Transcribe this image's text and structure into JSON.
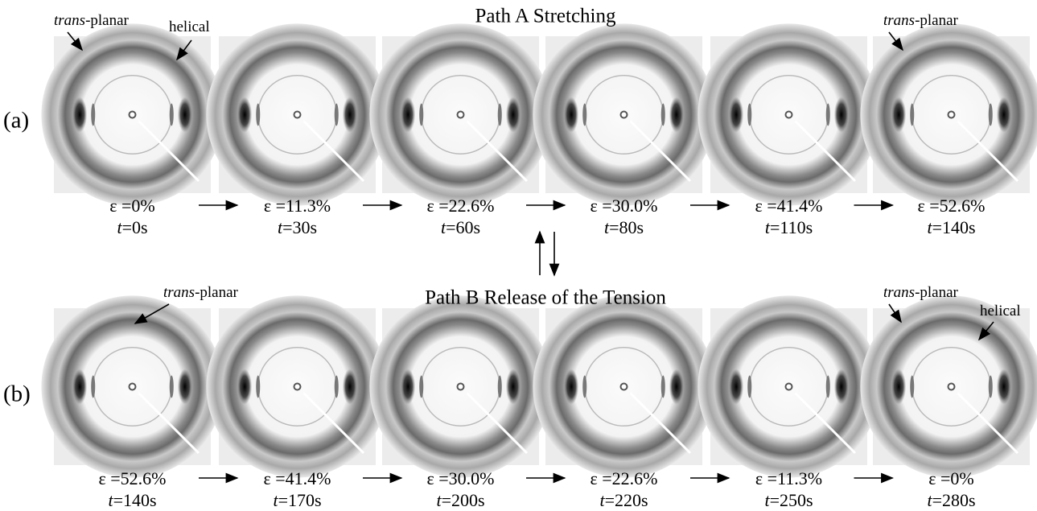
{
  "rows": [
    {
      "title": "Path A Stretching",
      "label": "(a)",
      "panels": [
        {
          "strain": "ε =0%",
          "time_symbol": "t",
          "time": "=0s"
        },
        {
          "strain": "ε =11.3%",
          "time_symbol": "t",
          "time": "=30s"
        },
        {
          "strain": "ε =22.6%",
          "time_symbol": "t",
          "time": "=60s"
        },
        {
          "strain": "ε =30.0%",
          "time_symbol": "t",
          "time": "=80s"
        },
        {
          "strain": "ε =41.4%",
          "time_symbol": "t",
          "time": "=110s"
        },
        {
          "strain": "ε =52.6%",
          "time_symbol": "t",
          "time": "=140s"
        }
      ],
      "annotations": [
        {
          "emph": "trans",
          "text": "-planar"
        },
        {
          "text": "helical"
        },
        {
          "emph": "trans",
          "text": "-planar"
        }
      ]
    },
    {
      "title": "Path B Release of the Tension",
      "label": "(b)",
      "panels": [
        {
          "strain": "ε =52.6%",
          "time_symbol": "t",
          "time": "=140s"
        },
        {
          "strain": "ε =41.4%",
          "time_symbol": "t",
          "time": "=170s"
        },
        {
          "strain": "ε =30.0%",
          "time_symbol": "t",
          "time": "=200s"
        },
        {
          "strain": "ε =22.6%",
          "time_symbol": "t",
          "time": "=220s"
        },
        {
          "strain": "ε =11.3%",
          "time_symbol": "t",
          "time": "=250s"
        },
        {
          "strain": "ε =0%",
          "time_symbol": "t",
          "time": "=280s"
        }
      ],
      "annotations": [
        {
          "emph": "trans",
          "text": "-planar"
        },
        {
          "emph": "trans",
          "text": "-planar"
        },
        {
          "text": "helical"
        }
      ]
    }
  ]
}
